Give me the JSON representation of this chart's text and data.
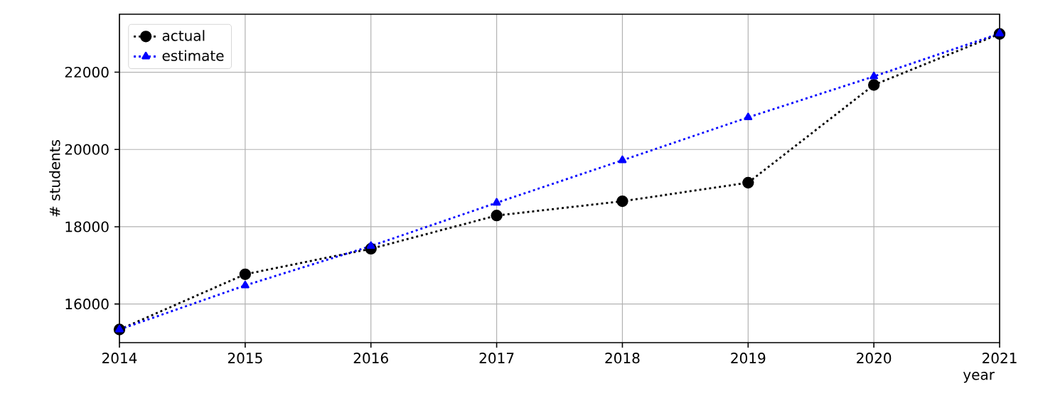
{
  "chart_data": {
    "type": "line",
    "xlabel": "year",
    "ylabel": "# students",
    "x": [
      2014,
      2015,
      2016,
      2017,
      2018,
      2019,
      2020,
      2021
    ],
    "series": [
      {
        "name": "actual",
        "color": "#000000",
        "marker": "circle",
        "values": [
          15340,
          16770,
          17430,
          18290,
          18660,
          19140,
          21670,
          22990
        ]
      },
      {
        "name": "estimate",
        "color": "#0000ff",
        "marker": "triangle",
        "values": [
          15340,
          16480,
          17500,
          18620,
          19720,
          20830,
          21890,
          23000
        ]
      }
    ],
    "line_style": "dotted",
    "grid": true,
    "legend": "top left",
    "xlim": [
      2014,
      2021
    ],
    "xticks": [
      2014,
      2015,
      2016,
      2017,
      2018,
      2019,
      2020,
      2021
    ],
    "ylim": [
      15000,
      23500
    ],
    "yticks": [
      16000,
      18000,
      20000,
      22000
    ]
  }
}
